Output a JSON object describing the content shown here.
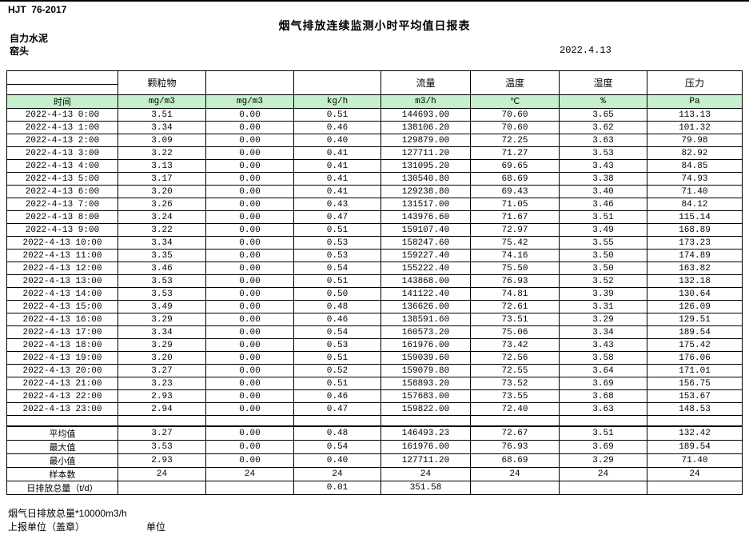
{
  "page": {
    "standard": "HJT  76-2017",
    "title": "烟气排放连续监测小时平均值日报表",
    "company": "自力水泥",
    "location": "窑头",
    "date": "2022.4.13"
  },
  "table": {
    "group_headers": [
      "",
      "颗粒物",
      "",
      "",
      "流量",
      "温度",
      "湿度",
      "压力"
    ],
    "unit_headers": [
      "时间",
      "mg/m3",
      "mg/m3",
      "kg/h",
      "m3/h",
      "℃",
      "%",
      "Pa"
    ],
    "rows": [
      [
        "2022-4-13 0:00",
        "3.51",
        "0.00",
        "0.51",
        "144693.00",
        "70.60",
        "3.65",
        "113.13"
      ],
      [
        "2022-4-13 1:00",
        "3.34",
        "0.00",
        "0.46",
        "138106.20",
        "70.60",
        "3.62",
        "101.32"
      ],
      [
        "2022-4-13 2:00",
        "3.09",
        "0.00",
        "0.40",
        "129879.00",
        "72.25",
        "3.63",
        "79.98"
      ],
      [
        "2022-4-13 3:00",
        "3.22",
        "0.00",
        "0.41",
        "127711.20",
        "71.27",
        "3.53",
        "82.92"
      ],
      [
        "2022-4-13 4:00",
        "3.13",
        "0.00",
        "0.41",
        "131095.20",
        "69.65",
        "3.43",
        "84.85"
      ],
      [
        "2022-4-13 5:00",
        "3.17",
        "0.00",
        "0.41",
        "130540.80",
        "68.69",
        "3.38",
        "74.93"
      ],
      [
        "2022-4-13 6:00",
        "3.20",
        "0.00",
        "0.41",
        "129238.80",
        "69.43",
        "3.40",
        "71.40"
      ],
      [
        "2022-4-13 7:00",
        "3.26",
        "0.00",
        "0.43",
        "131517.00",
        "71.05",
        "3.46",
        "84.12"
      ],
      [
        "2022-4-13 8:00",
        "3.24",
        "0.00",
        "0.47",
        "143976.60",
        "71.67",
        "3.51",
        "115.14"
      ],
      [
        "2022-4-13 9:00",
        "3.22",
        "0.00",
        "0.51",
        "159107.40",
        "72.97",
        "3.49",
        "168.89"
      ],
      [
        "2022-4-13 10:00",
        "3.34",
        "0.00",
        "0.53",
        "158247.60",
        "75.42",
        "3.55",
        "173.23"
      ],
      [
        "2022-4-13 11:00",
        "3.35",
        "0.00",
        "0.53",
        "159227.40",
        "74.16",
        "3.50",
        "174.89"
      ],
      [
        "2022-4-13 12:00",
        "3.46",
        "0.00",
        "0.54",
        "155222.40",
        "75.50",
        "3.50",
        "163.82"
      ],
      [
        "2022-4-13 13:00",
        "3.53",
        "0.00",
        "0.51",
        "143868.00",
        "76.93",
        "3.52",
        "132.18"
      ],
      [
        "2022-4-13 14:00",
        "3.53",
        "0.00",
        "0.50",
        "141122.40",
        "74.81",
        "3.39",
        "130.64"
      ],
      [
        "2022-4-13 15:00",
        "3.49",
        "0.00",
        "0.48",
        "136626.00",
        "72.61",
        "3.31",
        "126.09"
      ],
      [
        "2022-4-13 16:00",
        "3.29",
        "0.00",
        "0.46",
        "138591.60",
        "73.51",
        "3.29",
        "129.51"
      ],
      [
        "2022-4-13 17:00",
        "3.34",
        "0.00",
        "0.54",
        "160573.20",
        "75.06",
        "3.34",
        "189.54"
      ],
      [
        "2022-4-13 18:00",
        "3.29",
        "0.00",
        "0.53",
        "161976.00",
        "73.42",
        "3.43",
        "175.42"
      ],
      [
        "2022-4-13 19:00",
        "3.20",
        "0.00",
        "0.51",
        "159039.60",
        "72.56",
        "3.58",
        "176.06"
      ],
      [
        "2022-4-13 20:00",
        "3.27",
        "0.00",
        "0.52",
        "159079.80",
        "72.55",
        "3.64",
        "171.01"
      ],
      [
        "2022-4-13 21:00",
        "3.23",
        "0.00",
        "0.51",
        "158893.20",
        "73.52",
        "3.69",
        "156.75"
      ],
      [
        "2022-4-13 22:00",
        "2.93",
        "0.00",
        "0.46",
        "157683.00",
        "73.55",
        "3.68",
        "153.67"
      ],
      [
        "2022-4-13 23:00",
        "2.94",
        "0.00",
        "0.47",
        "159822.00",
        "72.40",
        "3.63",
        "148.53"
      ]
    ],
    "summary_rows": [
      [
        "平均值",
        "3.27",
        "0.00",
        "0.48",
        "146493.23",
        "72.67",
        "3.51",
        "132.42"
      ],
      [
        "最大值",
        "3.53",
        "0.00",
        "0.54",
        "161976.00",
        "76.93",
        "3.69",
        "189.54"
      ],
      [
        "最小值",
        "2.93",
        "0.00",
        "0.40",
        "127711.20",
        "68.69",
        "3.29",
        "71.40"
      ],
      [
        "样本数",
        "24",
        "24",
        "24",
        "24",
        "24",
        "24",
        "24"
      ],
      [
        "日排放总量（t/d）",
        "",
        "",
        "0.01",
        "351.58",
        "",
        "",
        ""
      ]
    ]
  },
  "footer": {
    "note": "烟气日排放总量*10000m3/h",
    "stamp_label": "上报单位（盖章）",
    "unit_label": "单位"
  },
  "colors": {
    "header_green": "#c6efce",
    "border": "#000000"
  }
}
